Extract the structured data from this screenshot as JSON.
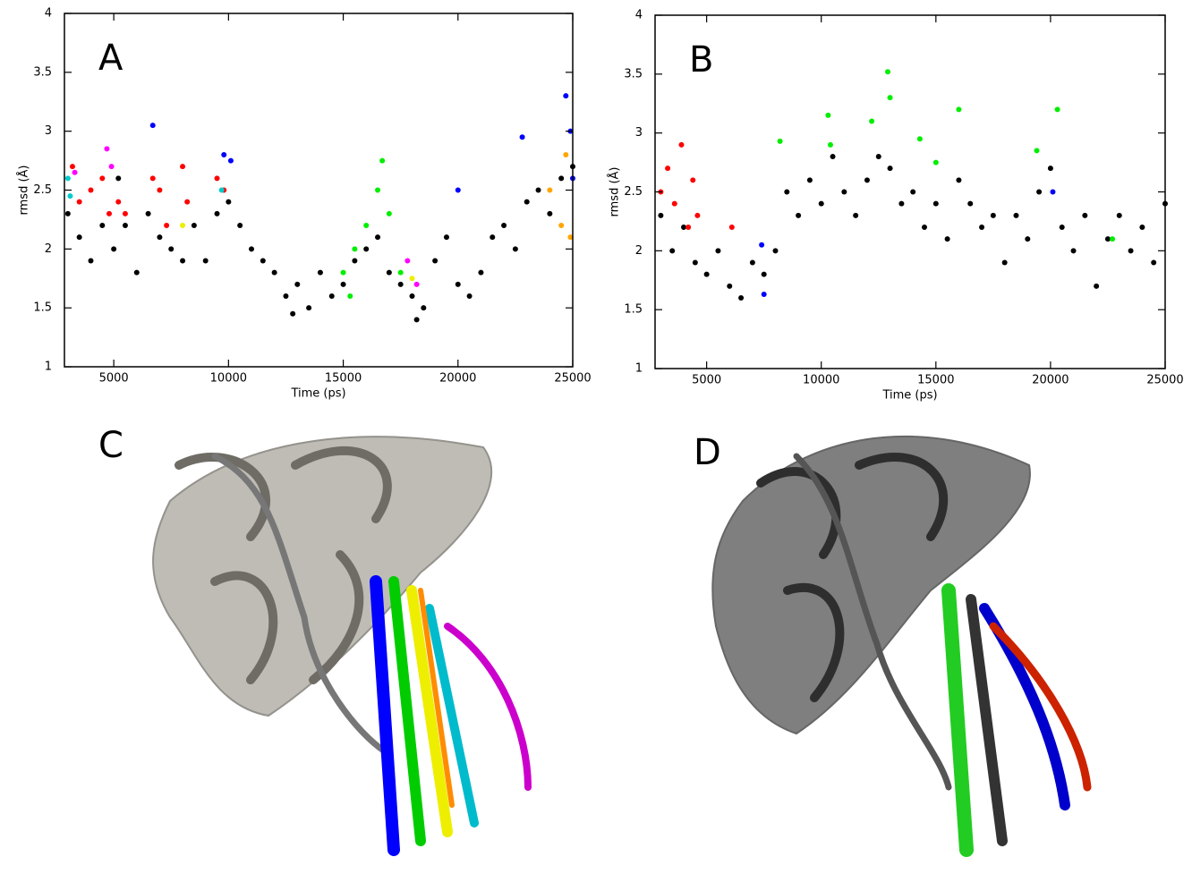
{
  "chart_data": [
    {
      "type": "scatter",
      "annotation": "A",
      "x_label": "Time (ps)",
      "y_label": "rmsd (Å)",
      "xlim": [
        2850,
        25000
      ],
      "ylim": [
        1,
        4
      ],
      "xticks": [
        5000,
        10000,
        15000,
        20000,
        25000
      ],
      "yticks": [
        1,
        1.5,
        2,
        2.5,
        3,
        3.5,
        4
      ],
      "series": [
        {
          "color": "#000000",
          "x": [
            3000,
            3500,
            4000,
            4500,
            5000,
            5200,
            5500,
            6000,
            6500,
            7000,
            7500,
            8000,
            8500,
            9000,
            9500,
            10000,
            10500,
            11000,
            11500,
            12000,
            12500,
            12800,
            13000,
            13500,
            14000,
            14500,
            15000,
            15500,
            16000,
            16500,
            17000,
            17500,
            18000,
            18200,
            18500,
            19000,
            19500,
            20000,
            20500,
            21000,
            21500,
            22000,
            22500,
            23000,
            23500,
            24000,
            24500,
            25000
          ],
          "y": [
            2.3,
            2.1,
            1.9,
            2.2,
            2.0,
            2.6,
            2.2,
            1.8,
            2.3,
            2.1,
            2.0,
            1.9,
            2.2,
            1.9,
            2.3,
            2.4,
            2.2,
            2.0,
            1.9,
            1.8,
            1.6,
            1.45,
            1.7,
            1.5,
            1.8,
            1.6,
            1.7,
            1.9,
            2.0,
            2.1,
            1.8,
            1.7,
            1.6,
            1.4,
            1.5,
            1.9,
            2.1,
            1.7,
            1.6,
            1.8,
            2.1,
            2.2,
            2.0,
            2.4,
            2.5,
            2.3,
            2.6,
            2.7
          ]
        },
        {
          "color": "#ff0000",
          "x": [
            3200,
            3500,
            4000,
            4500,
            4800,
            5200,
            5500,
            6700,
            7000,
            7300,
            8000,
            8200,
            9500,
            9800
          ],
          "y": [
            2.7,
            2.4,
            2.5,
            2.6,
            2.3,
            2.4,
            2.3,
            2.6,
            2.5,
            2.2,
            2.7,
            2.4,
            2.6,
            2.5
          ]
        },
        {
          "color": "#ff00ff",
          "x": [
            3300,
            4700,
            4900,
            17800,
            18200
          ],
          "y": [
            2.65,
            2.85,
            2.7,
            1.9,
            1.7
          ]
        },
        {
          "color": "#00cccc",
          "x": [
            3000,
            3100,
            9700
          ],
          "y": [
            2.6,
            2.45,
            2.5
          ]
        },
        {
          "color": "#0000ff",
          "x": [
            6700,
            9800,
            10100,
            20000,
            22800,
            24700,
            24900,
            25000
          ],
          "y": [
            3.05,
            2.8,
            2.75,
            2.5,
            2.95,
            3.3,
            3.0,
            2.6
          ]
        },
        {
          "color": "#00ee00",
          "x": [
            15000,
            15300,
            15500,
            16000,
            16500,
            16700,
            17000,
            17500
          ],
          "y": [
            1.8,
            1.6,
            2.0,
            2.2,
            2.5,
            2.75,
            2.3,
            1.8
          ]
        },
        {
          "color": "#ffa500",
          "x": [
            24000,
            24500,
            24700,
            24900
          ],
          "y": [
            2.5,
            2.2,
            2.8,
            2.1
          ]
        },
        {
          "color": "#eeee00",
          "x": [
            8000,
            18000
          ],
          "y": [
            2.2,
            1.75
          ]
        }
      ]
    },
    {
      "type": "scatter",
      "annotation": "B",
      "x_label": "Time (ps)",
      "y_label": "rmsd (Å)",
      "xlim": [
        2750,
        25000
      ],
      "ylim": [
        1,
        4
      ],
      "xticks": [
        5000,
        10000,
        15000,
        20000,
        25000
      ],
      "yticks": [
        1,
        1.5,
        2,
        2.5,
        3,
        3.5,
        4
      ],
      "series": [
        {
          "color": "#000000",
          "x": [
            3000,
            3500,
            4000,
            4500,
            5000,
            5500,
            6000,
            6500,
            7000,
            7500,
            8000,
            8500,
            9000,
            9500,
            10000,
            10500,
            11000,
            11500,
            12000,
            12500,
            13000,
            13500,
            14000,
            14500,
            15000,
            15500,
            16000,
            16500,
            17000,
            17500,
            18000,
            18500,
            19000,
            19500,
            20000,
            20500,
            21000,
            21500,
            22000,
            22500,
            23000,
            23500,
            24000,
            24500,
            25000
          ],
          "y": [
            2.3,
            2.0,
            2.2,
            1.9,
            1.8,
            2.0,
            1.7,
            1.6,
            1.9,
            1.8,
            2.0,
            2.5,
            2.3,
            2.6,
            2.4,
            2.8,
            2.5,
            2.3,
            2.6,
            2.8,
            2.7,
            2.4,
            2.5,
            2.2,
            2.4,
            2.1,
            2.6,
            2.4,
            2.2,
            2.3,
            1.9,
            2.3,
            2.1,
            2.5,
            2.7,
            2.2,
            2.0,
            2.3,
            1.7,
            2.1,
            2.3,
            2.0,
            2.2,
            1.9,
            2.4
          ]
        },
        {
          "color": "#ff0000",
          "x": [
            3000,
            3300,
            3600,
            3900,
            4200,
            4400,
            4600,
            6100
          ],
          "y": [
            2.5,
            2.7,
            2.4,
            2.9,
            2.2,
            2.6,
            2.3,
            2.2
          ]
        },
        {
          "color": "#00ee00",
          "x": [
            8200,
            10300,
            10400,
            12200,
            12900,
            13000,
            14300,
            15000,
            16000,
            19400,
            20300,
            22700
          ],
          "y": [
            2.93,
            3.15,
            2.9,
            3.1,
            3.52,
            3.3,
            2.95,
            2.75,
            3.2,
            2.85,
            3.2,
            2.1
          ]
        },
        {
          "color": "#0000ff",
          "x": [
            7400,
            7500,
            20100
          ],
          "y": [
            2.05,
            1.63,
            2.5
          ]
        }
      ]
    }
  ],
  "panel_labels": [
    "C",
    "D"
  ]
}
